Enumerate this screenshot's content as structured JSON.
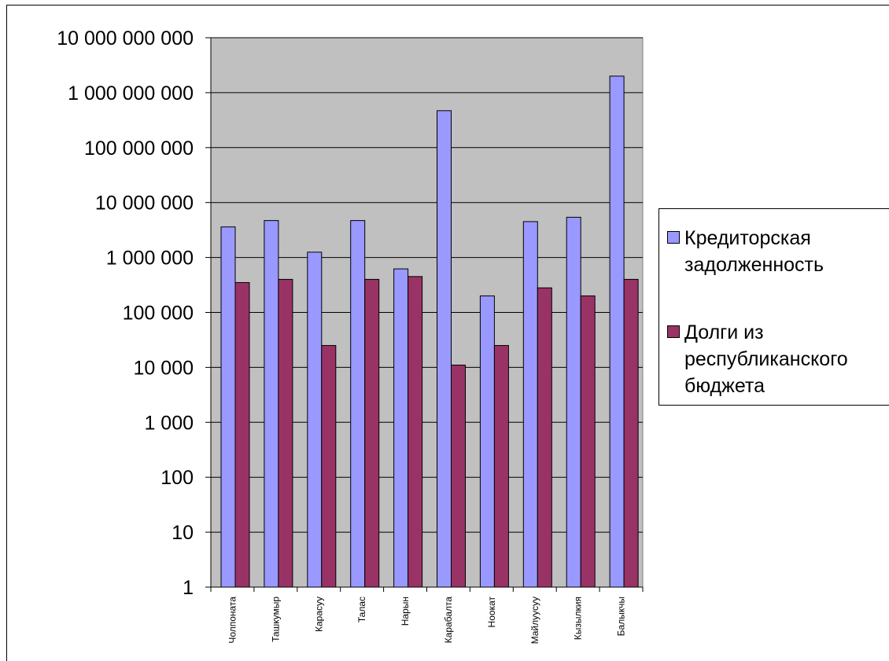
{
  "chart_data": {
    "type": "bar",
    "y_scale": "log",
    "ylim": [
      1,
      10000000000
    ],
    "grid": true,
    "legend_position": "right",
    "categories": [
      "Чолпоната",
      "Ташкумыр",
      "Карасуу",
      "Талас",
      "Нарын",
      "Карабалта",
      "Ноокат",
      "Майлуусуу",
      "Кызылкия",
      "Балыкчы"
    ],
    "y_ticks": [
      {
        "value": 1,
        "label": "1"
      },
      {
        "value": 10,
        "label": "10"
      },
      {
        "value": 100,
        "label": "100"
      },
      {
        "value": 1000,
        "label": "1 000"
      },
      {
        "value": 10000,
        "label": "10 000"
      },
      {
        "value": 100000,
        "label": "100 000"
      },
      {
        "value": 1000000,
        "label": "1 000 000"
      },
      {
        "value": 10000000,
        "label": "10 000 000"
      },
      {
        "value": 100000000,
        "label": "100 000 000"
      },
      {
        "value": 1000000000,
        "label": "1 000 000 000"
      },
      {
        "value": 10000000000,
        "label": "10 000 000 000"
      }
    ],
    "series": [
      {
        "name": "Кредиторская задолженность",
        "color": "#9999ff",
        "values": [
          3600000,
          4700000,
          1250000,
          4700000,
          620000,
          470000000,
          200000,
          4500000,
          5400000,
          2000000000
        ]
      },
      {
        "name": "Долги из республиканского бюджета",
        "color": "#993366",
        "values": [
          350000,
          400000,
          25000,
          400000,
          450000,
          11000,
          25000,
          280000,
          200000,
          400000
        ]
      }
    ]
  },
  "legend": {
    "items": [
      {
        "label": "Кредиторская\nзадолженность",
        "color": "#9999ff"
      },
      {
        "label": "Долги из\nреспубликанского\nбюджета",
        "color": "#993366"
      }
    ]
  }
}
